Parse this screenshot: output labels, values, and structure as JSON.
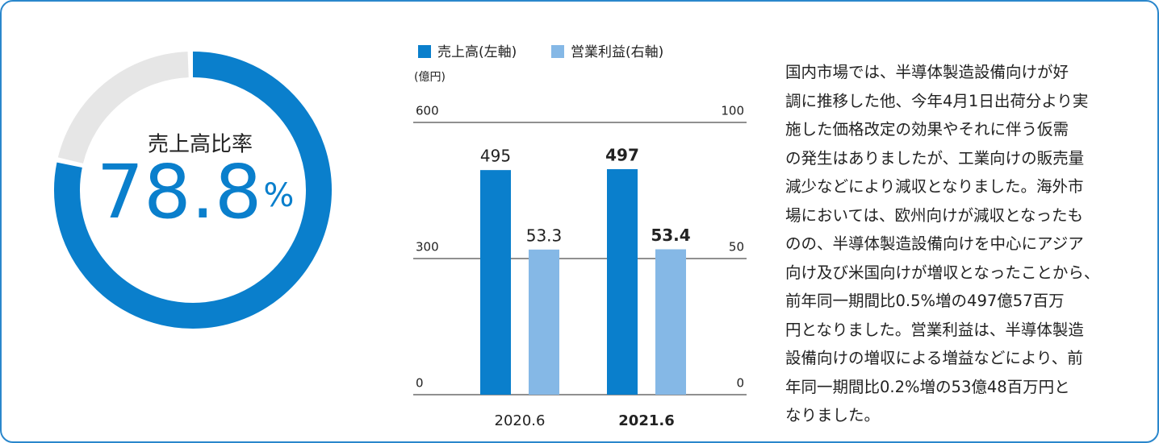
{
  "chart_data": [
    {
      "type": "pie",
      "categories": [
        "売上高比率",
        null
      ],
      "values": [
        78.8,
        21.2
      ],
      "colors": [
        "#0a7fcc",
        "#e6e6e6"
      ],
      "value_labels": [
        "78.8",
        null
      ],
      "unit": "%"
    },
    {
      "type": "bar",
      "categories": [
        "2020.6",
        "2021.6"
      ],
      "emphasis": [
        false,
        true
      ],
      "series": [
        {
          "name": "売上高(左軸)",
          "color": "#0a7fcc",
          "values": [
            495,
            497
          ]
        },
        {
          "name": "営業利益(右軸)",
          "color": "#85b8e6",
          "values": [
            53.3,
            53.4
          ],
          "axis": "y2"
        }
      ],
      "y_unit": "(億円)",
      "ylim": [
        0,
        600
      ],
      "yticks": [
        0,
        300,
        600
      ],
      "y2lim": [
        0,
        100
      ],
      "y2ticks": [
        0,
        50,
        100
      ],
      "grid": true
    }
  ],
  "text": {
    "lines": [
      "国内市場では、半導体製造設備向けが好",
      "調に推移した他、今年4月1日出荷分より実",
      "施した価格改定の効果やそれに伴う仮需",
      "の発生はありましたが、工業向けの販売量",
      "減少などにより減収となりました。海外市",
      "場においては、欧州向けが減収となったも",
      "のの、半導体製造設備向けを中心にアジア",
      "向け及び米国向けが増収となったことから、",
      "前年同一期間比0.5%増の497億57百万",
      "円となりました。営業利益は、半導体製造",
      "設備向けの増収による増益などにより、前",
      "年同一期間比0.2%増の53億48百万円と",
      "なりました。"
    ]
  }
}
